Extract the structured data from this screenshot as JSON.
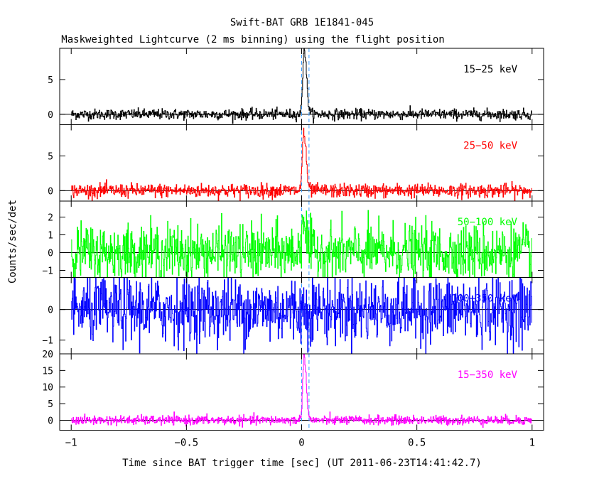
{
  "figure": {
    "title": "Swift-BAT GRB 1E1841-045",
    "subtitle": "Maskweighted Lightcurve (2 ms binning) using the flight position",
    "xlabel": "Time since BAT trigger time [sec] (UT 2011-06-23T14:41:42.7)",
    "ylabel": "Counts/sec/det"
  },
  "chart_data": {
    "type": "line",
    "title": "Swift-BAT GRB 1E1841-045",
    "subtitle": "Maskweighted Lightcurve (2 ms binning) using the flight position",
    "xlabel": "Time since BAT trigger time [sec] (UT 2011-06-23T14:41:42.7)",
    "ylabel": "Counts/sec/det",
    "xlim": [
      -1.05,
      1.05
    ],
    "x_ticks": [
      -1,
      -0.5,
      0,
      0.5,
      1
    ],
    "x_tick_labels": [
      "−1",
      "−0.5",
      "0",
      "0.5",
      "1"
    ],
    "bin_width_s": 0.002,
    "vertical_lines": [
      0,
      0.032
    ],
    "panels": [
      {
        "name": "15−25 keV",
        "color": "#000000",
        "ylim": [
          -1.5,
          9.5
        ],
        "y_ticks": [
          0,
          5
        ],
        "noise_sd": 0.38,
        "peak": {
          "t": 0.01,
          "amplitude": 9.5,
          "rise": 0.006,
          "decay": 0.01
        }
      },
      {
        "name": "25−50 keV",
        "color": "#ff0000",
        "ylim": [
          -1.5,
          9.5
        ],
        "y_ticks": [
          0,
          5
        ],
        "noise_sd": 0.5,
        "peak": {
          "t": 0.008,
          "amplitude": 8.5,
          "rise": 0.006,
          "decay": 0.01
        }
      },
      {
        "name": "50−100 keV",
        "color": "#00ff00",
        "ylim": [
          -1.4,
          2.9
        ],
        "y_ticks": [
          -1,
          0,
          1,
          2
        ],
        "noise_sd": 0.8,
        "peak": {
          "t": 0.005,
          "amplitude": 2.2,
          "rise": 0.006,
          "decay": 0.012
        }
      },
      {
        "name": "100−350 keV",
        "color": "#0000ff",
        "ylim": [
          -1.45,
          1.05
        ],
        "y_ticks": [
          -1,
          0
        ],
        "noise_sd": 0.55,
        "peak": null
      },
      {
        "name": "15−350 keV",
        "color": "#ff00ff",
        "ylim": [
          -3,
          20
        ],
        "y_ticks": [
          0,
          5,
          10,
          15,
          20
        ],
        "noise_sd": 0.7,
        "peak": {
          "t": 0.01,
          "amplitude": 20,
          "rise": 0.006,
          "decay": 0.009
        }
      }
    ]
  }
}
